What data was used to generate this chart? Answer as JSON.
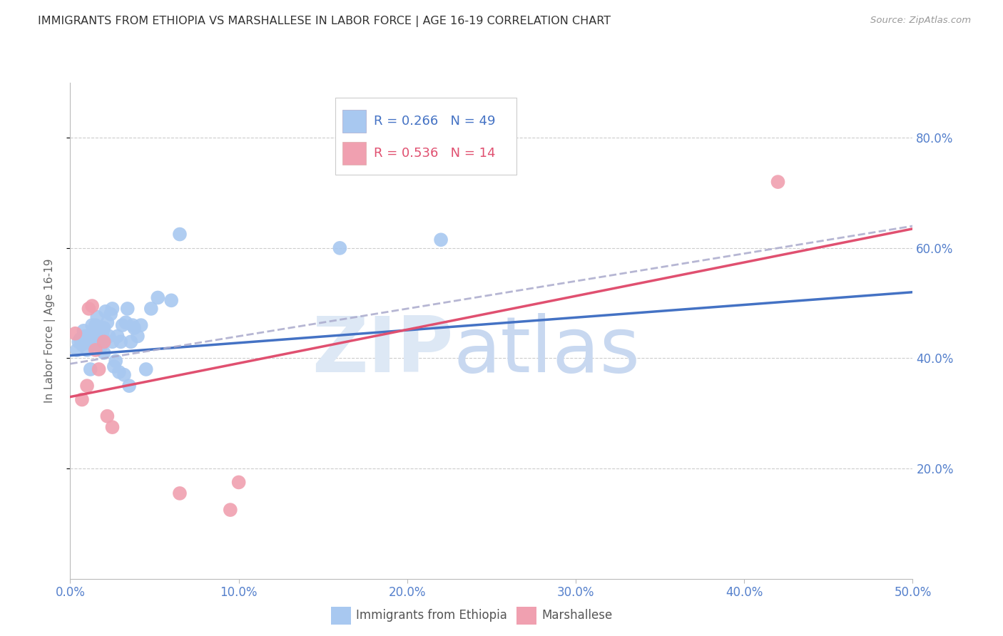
{
  "title": "IMMIGRANTS FROM ETHIOPIA VS MARSHALLESE IN LABOR FORCE | AGE 16-19 CORRELATION CHART",
  "source": "Source: ZipAtlas.com",
  "ylabel_left": "In Labor Force | Age 16-19",
  "r_ethiopia": 0.266,
  "n_ethiopia": 49,
  "r_marshallese": 0.536,
  "n_marshallese": 14,
  "xlim": [
    0.0,
    0.5
  ],
  "ylim": [
    0.0,
    0.9
  ],
  "xtick_vals": [
    0.0,
    0.1,
    0.2,
    0.3,
    0.4,
    0.5
  ],
  "ytick_vals": [
    0.2,
    0.4,
    0.6,
    0.8
  ],
  "color_ethiopia_dot": "#a8c8f0",
  "color_marshallese_dot": "#f0a0b0",
  "color_line_ethiopia": "#4472c4",
  "color_line_marshallese": "#e05070",
  "color_axis": "#5580cc",
  "ethiopia_x": [
    0.004,
    0.005,
    0.006,
    0.007,
    0.008,
    0.009,
    0.01,
    0.01,
    0.011,
    0.012,
    0.013,
    0.013,
    0.014,
    0.015,
    0.015,
    0.016,
    0.017,
    0.018,
    0.019,
    0.02,
    0.02,
    0.021,
    0.022,
    0.023,
    0.024,
    0.025,
    0.025,
    0.026,
    0.027,
    0.028,
    0.029,
    0.03,
    0.031,
    0.032,
    0.033,
    0.034,
    0.035,
    0.036,
    0.037,
    0.038,
    0.04,
    0.042,
    0.045,
    0.048,
    0.052,
    0.06,
    0.065,
    0.16,
    0.22
  ],
  "ethiopia_y": [
    0.415,
    0.43,
    0.435,
    0.425,
    0.45,
    0.44,
    0.415,
    0.43,
    0.44,
    0.38,
    0.46,
    0.425,
    0.445,
    0.44,
    0.46,
    0.475,
    0.43,
    0.42,
    0.445,
    0.41,
    0.455,
    0.485,
    0.465,
    0.44,
    0.48,
    0.43,
    0.49,
    0.385,
    0.395,
    0.44,
    0.375,
    0.43,
    0.46,
    0.37,
    0.465,
    0.49,
    0.35,
    0.43,
    0.46,
    0.455,
    0.44,
    0.46,
    0.38,
    0.49,
    0.51,
    0.505,
    0.625,
    0.6,
    0.615
  ],
  "marshallese_x": [
    0.003,
    0.007,
    0.01,
    0.011,
    0.013,
    0.015,
    0.017,
    0.02,
    0.022,
    0.025,
    0.065,
    0.095,
    0.1,
    0.42
  ],
  "marshallese_y": [
    0.445,
    0.325,
    0.35,
    0.49,
    0.495,
    0.415,
    0.38,
    0.43,
    0.295,
    0.275,
    0.155,
    0.125,
    0.175,
    0.72
  ],
  "eth_line_x0": 0.0,
  "eth_line_y0": 0.405,
  "eth_line_x1": 0.5,
  "eth_line_y1": 0.52,
  "marsh_line_x0": 0.0,
  "marsh_line_y0": 0.33,
  "marsh_line_x1": 0.5,
  "marsh_line_y1": 0.635,
  "dashed_line_x0": 0.0,
  "dashed_line_y0": 0.39,
  "dashed_line_x1": 0.5,
  "dashed_line_y1": 0.64
}
